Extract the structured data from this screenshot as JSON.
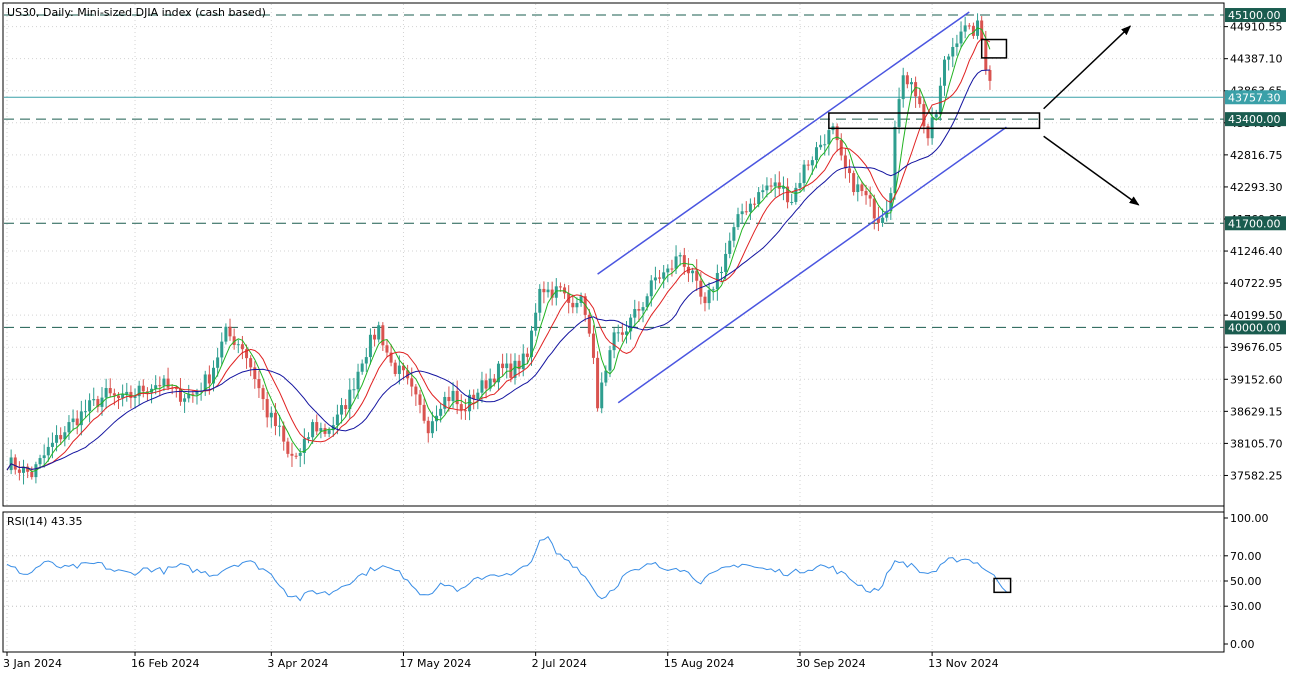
{
  "chart_data": {
    "type": "candlestick",
    "symbol": "US30",
    "timeframe": "Daily",
    "description": "Mini-sized DJIA index (cash based)",
    "header_text": "US30, Daily:  Mini-sized DJIA index (cash based)",
    "price_axis": {
      "range": [
        37100,
        45280
      ],
      "ticks": [
        "44910.55",
        "44387.10",
        "43863.65",
        "43340.20",
        "42816.75",
        "42293.30",
        "41769.85",
        "41246.40",
        "40722.95",
        "40199.50",
        "39676.05",
        "39152.60",
        "38629.15",
        "38105.70",
        "37582.25"
      ]
    },
    "x_axis": {
      "labels": [
        "3 Jan 2024",
        "16 Feb 2024",
        "3 Apr 2024",
        "17 May 2024",
        "2 Jul 2024",
        "15 Aug 2024",
        "30 Sep 2024",
        "13 Nov 2024"
      ],
      "label_bar_index": [
        0,
        31,
        64,
        96,
        128,
        160,
        192,
        224
      ],
      "last_bar_index": 238
    },
    "levels": [
      {
        "price": 45100.0,
        "label": "45100.00",
        "color": "#1a5c4f",
        "style": "dashed"
      },
      {
        "price": 43400.0,
        "label": "43400.00",
        "color": "#1a5c4f",
        "style": "dashed"
      },
      {
        "price": 41700.0,
        "label": "41700.00",
        "color": "#1a5c4f",
        "style": "dashed"
      },
      {
        "price": 40000.0,
        "label": "40000.00",
        "color": "#1a5c4f",
        "style": "dashed"
      }
    ],
    "current_price": {
      "price": 43757.3,
      "label": "43757.30",
      "color": "#3aa0a8"
    },
    "price_path": [
      [
        0,
        37800
      ],
      [
        6,
        37600
      ],
      [
        10,
        38000
      ],
      [
        15,
        38400
      ],
      [
        20,
        38700
      ],
      [
        24,
        38900
      ],
      [
        28,
        38800
      ],
      [
        33,
        39000
      ],
      [
        37,
        39100
      ],
      [
        41,
        38900
      ],
      [
        45,
        38900
      ],
      [
        49,
        39200
      ],
      [
        53,
        39900
      ],
      [
        57,
        39700
      ],
      [
        60,
        39200
      ],
      [
        63,
        38600
      ],
      [
        66,
        38300
      ],
      [
        68,
        37900
      ],
      [
        71,
        37900
      ],
      [
        74,
        38400
      ],
      [
        77,
        38300
      ],
      [
        80,
        38500
      ],
      [
        83,
        38900
      ],
      [
        86,
        39500
      ],
      [
        90,
        40000
      ],
      [
        93,
        39400
      ],
      [
        96,
        39200
      ],
      [
        99,
        38800
      ],
      [
        102,
        38400
      ],
      [
        105,
        38800
      ],
      [
        108,
        38900
      ],
      [
        110,
        38600
      ],
      [
        113,
        38900
      ],
      [
        116,
        39100
      ],
      [
        119,
        39300
      ],
      [
        122,
        39300
      ],
      [
        126,
        39500
      ],
      [
        129,
        40700
      ],
      [
        131,
        40600
      ],
      [
        134,
        40600
      ],
      [
        136,
        40400
      ],
      [
        138,
        40500
      ],
      [
        140,
        40300
      ],
      [
        142,
        39400
      ],
      [
        143,
        38800
      ],
      [
        145,
        39200
      ],
      [
        147,
        39800
      ],
      [
        149,
        39900
      ],
      [
        151,
        40100
      ],
      [
        154,
        40400
      ],
      [
        157,
        40800
      ],
      [
        160,
        40900
      ],
      [
        163,
        41200
      ],
      [
        166,
        40800
      ],
      [
        169,
        40300
      ],
      [
        171,
        40700
      ],
      [
        173,
        41000
      ],
      [
        175,
        41400
      ],
      [
        178,
        41900
      ],
      [
        181,
        42100
      ],
      [
        184,
        42300
      ],
      [
        187,
        42300
      ],
      [
        190,
        42100
      ],
      [
        193,
        42600
      ],
      [
        196,
        42900
      ],
      [
        198,
        43100
      ],
      [
        200,
        43200
      ],
      [
        202,
        42700
      ],
      [
        204,
        42400
      ],
      [
        207,
        42200
      ],
      [
        209,
        42000
      ],
      [
        211,
        41800
      ],
      [
        213,
        42000
      ],
      [
        214,
        42300
      ],
      [
        215,
        43400
      ],
      [
        217,
        44000
      ],
      [
        219,
        44100
      ],
      [
        221,
        43600
      ],
      [
        223,
        43100
      ],
      [
        225,
        43500
      ],
      [
        227,
        44300
      ],
      [
        229,
        44600
      ],
      [
        231,
        44900
      ],
      [
        233,
        44800
      ],
      [
        235,
        44900
      ],
      [
        236,
        44700
      ],
      [
        237,
        44300
      ],
      [
        238,
        44100
      ],
      [
        239,
        43800
      ],
      [
        240,
        43700
      ]
    ],
    "moving_averages": [
      {
        "name": "MA fast",
        "color": "#22b322",
        "period": 5
      },
      {
        "name": "MA medium",
        "color": "#e02222",
        "period": 10
      },
      {
        "name": "MA slow",
        "color": "#1515a0",
        "period": 20
      }
    ],
    "channel": {
      "color": "#4a55e0",
      "upper": [
        [
          143,
          40870
        ],
        [
          233,
          45150
        ]
      ],
      "lower": [
        [
          148,
          38770
        ],
        [
          242,
          43270
        ]
      ]
    },
    "box_top": {
      "bar_start": 236,
      "bar_end": 242,
      "price_top": 44700,
      "price_bottom": 44400
    },
    "box_support": {
      "bar_start": 199,
      "bar_end": 250,
      "price_top": 43500,
      "price_bottom": 43250
    },
    "arrow_up": {
      "from": [
        251,
        43570
      ],
      "to": [
        272,
        44920
      ]
    },
    "arrow_down": {
      "from": [
        251,
        43120
      ],
      "to": [
        274,
        42000
      ]
    },
    "rsi": {
      "label": "RSI(14) 43.35",
      "value": 43.35,
      "color": "#3a8ee6",
      "range": [
        0,
        100
      ],
      "ticks": [
        "100.00",
        "70.00",
        "50.00",
        "30.00",
        "0.00"
      ],
      "levels": [
        70,
        50,
        30
      ],
      "path": [
        [
          0,
          62
        ],
        [
          5,
          55
        ],
        [
          9,
          65
        ],
        [
          14,
          60
        ],
        [
          18,
          62
        ],
        [
          22,
          64
        ],
        [
          26,
          58
        ],
        [
          30,
          56
        ],
        [
          34,
          60
        ],
        [
          38,
          58
        ],
        [
          42,
          62
        ],
        [
          46,
          58
        ],
        [
          50,
          55
        ],
        [
          54,
          62
        ],
        [
          58,
          66
        ],
        [
          62,
          60
        ],
        [
          65,
          52
        ],
        [
          68,
          40
        ],
        [
          71,
          36
        ],
        [
          74,
          42
        ],
        [
          78,
          40
        ],
        [
          82,
          48
        ],
        [
          86,
          55
        ],
        [
          90,
          62
        ],
        [
          94,
          58
        ],
        [
          97,
          52
        ],
        [
          100,
          40
        ],
        [
          103,
          42
        ],
        [
          106,
          48
        ],
        [
          110,
          42
        ],
        [
          114,
          52
        ],
        [
          118,
          56
        ],
        [
          122,
          54
        ],
        [
          126,
          62
        ],
        [
          129,
          80
        ],
        [
          131,
          84
        ],
        [
          133,
          72
        ],
        [
          136,
          66
        ],
        [
          139,
          58
        ],
        [
          142,
          44
        ],
        [
          144,
          36
        ],
        [
          147,
          45
        ],
        [
          150,
          56
        ],
        [
          153,
          58
        ],
        [
          156,
          64
        ],
        [
          159,
          60
        ],
        [
          162,
          62
        ],
        [
          165,
          56
        ],
        [
          168,
          50
        ],
        [
          171,
          55
        ],
        [
          174,
          60
        ],
        [
          178,
          64
        ],
        [
          182,
          60
        ],
        [
          186,
          58
        ],
        [
          190,
          56
        ],
        [
          194,
          60
        ],
        [
          197,
          62
        ],
        [
          200,
          60
        ],
        [
          203,
          54
        ],
        [
          206,
          48
        ],
        [
          209,
          42
        ],
        [
          212,
          46
        ],
        [
          214,
          62
        ],
        [
          216,
          66
        ],
        [
          219,
          62
        ],
        [
          222,
          56
        ],
        [
          225,
          58
        ],
        [
          228,
          66
        ],
        [
          231,
          68
        ],
        [
          234,
          66
        ],
        [
          236,
          62
        ],
        [
          238,
          56
        ],
        [
          240,
          50
        ],
        [
          242,
          43
        ]
      ],
      "marker_box": {
        "bar_start": 239,
        "bar_end": 243,
        "value_top": 52,
        "value_bottom": 41
      }
    }
  }
}
